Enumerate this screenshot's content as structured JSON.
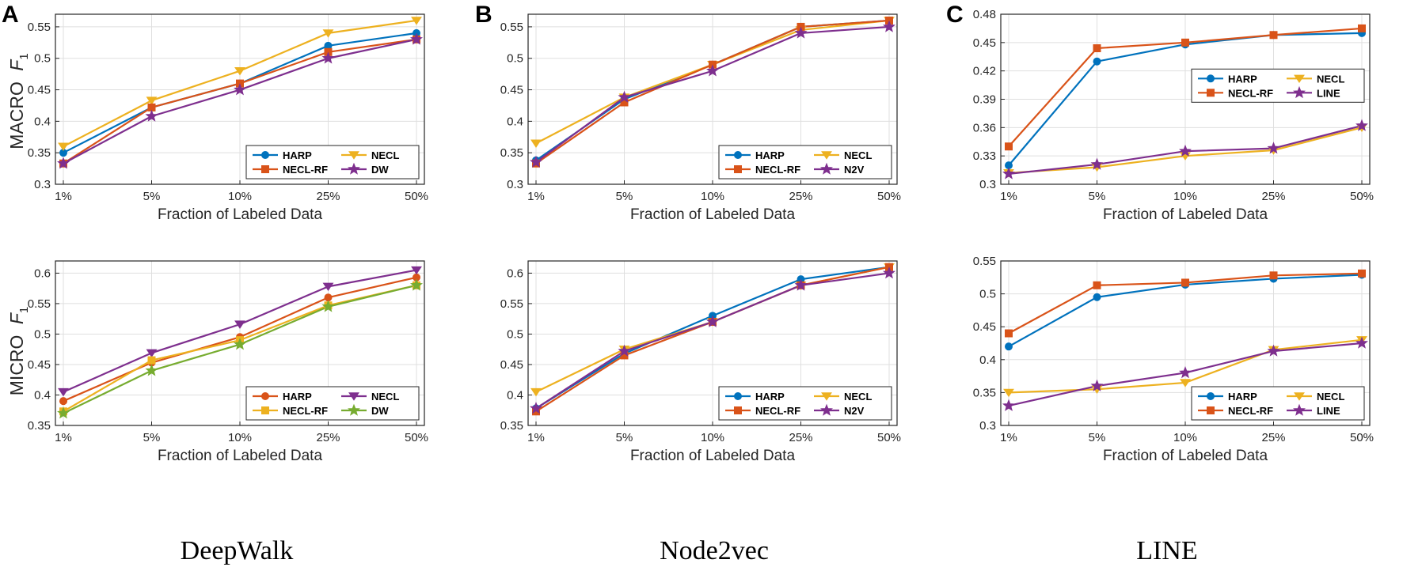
{
  "panel_letters": [
    "A",
    "B",
    "C"
  ],
  "captions": [
    "DeepWalk",
    "Node2vec",
    "LINE"
  ],
  "row_labels": {
    "macro": {
      "prefix": "MACRO",
      "f": "F",
      "sub": "1"
    },
    "micro": {
      "prefix": "MICRO",
      "f": "F",
      "sub": "1"
    }
  },
  "colors": {
    "blue": "#0072BD",
    "orange": "#D95319",
    "yellow": "#EDB120",
    "purple": "#7E2F8E",
    "green": "#77AC30"
  },
  "chart_data": [
    {
      "id": "deepwalk-macro",
      "type": "line",
      "categories": [
        "1%",
        "5%",
        "10%",
        "25%",
        "50%"
      ],
      "xlabel": "Fraction of Labeled Data",
      "ylabel": "MACRO F1",
      "ylim": [
        0.3,
        0.57
      ],
      "yticks": [
        "0.3",
        "0.35",
        "0.4",
        "0.45",
        "0.5",
        "0.55"
      ],
      "legend_location": "bottom-right",
      "series": [
        {
          "name": "HARP",
          "color": "#0072BD",
          "marker": "circle",
          "values": [
            0.35,
            0.422,
            0.46,
            0.52,
            0.54
          ]
        },
        {
          "name": "NECL",
          "color": "#EDB120",
          "marker": "triangle-down",
          "values": [
            0.36,
            0.433,
            0.48,
            0.54,
            0.56
          ]
        },
        {
          "name": "NECL-RF",
          "color": "#D95319",
          "marker": "square",
          "values": [
            0.333,
            0.422,
            0.46,
            0.51,
            0.53
          ]
        },
        {
          "name": "DW",
          "color": "#7E2F8E",
          "marker": "star",
          "values": [
            0.333,
            0.408,
            0.45,
            0.5,
            0.53
          ]
        }
      ]
    },
    {
      "id": "node2vec-macro",
      "type": "line",
      "categories": [
        "1%",
        "5%",
        "10%",
        "25%",
        "50%"
      ],
      "xlabel": "Fraction of Labeled Data",
      "ylabel": "MACRO F1",
      "ylim": [
        0.3,
        0.57
      ],
      "yticks": [
        "0.3",
        "0.35",
        "0.4",
        "0.45",
        "0.5",
        "0.55"
      ],
      "legend_location": "bottom-right",
      "series": [
        {
          "name": "HARP",
          "color": "#0072BD",
          "marker": "circle",
          "values": [
            0.338,
            0.435,
            0.49,
            0.55,
            0.56
          ]
        },
        {
          "name": "NECL",
          "color": "#EDB120",
          "marker": "triangle-down",
          "values": [
            0.365,
            0.438,
            0.49,
            0.545,
            0.56
          ]
        },
        {
          "name": "NECL-RF",
          "color": "#D95319",
          "marker": "square",
          "values": [
            0.333,
            0.43,
            0.49,
            0.55,
            0.56
          ]
        },
        {
          "name": "N2V",
          "color": "#7E2F8E",
          "marker": "star",
          "values": [
            0.335,
            0.438,
            0.48,
            0.54,
            0.55
          ]
        }
      ]
    },
    {
      "id": "line-macro",
      "type": "line",
      "categories": [
        "1%",
        "5%",
        "10%",
        "25%",
        "50%"
      ],
      "xlabel": "Fraction of Labeled Data",
      "ylabel": "MACRO F1",
      "ylim": [
        0.3,
        0.48
      ],
      "yticks": [
        "0.3",
        "0.33",
        "0.36",
        "0.39",
        "0.42",
        "0.45",
        "0.48"
      ],
      "legend_location": "center-right",
      "series": [
        {
          "name": "HARP",
          "color": "#0072BD",
          "marker": "circle",
          "values": [
            0.32,
            0.43,
            0.448,
            0.458,
            0.46
          ]
        },
        {
          "name": "NECL",
          "color": "#EDB120",
          "marker": "triangle-down",
          "values": [
            0.312,
            0.318,
            0.33,
            0.336,
            0.36
          ]
        },
        {
          "name": "NECL-RF",
          "color": "#D95319",
          "marker": "square",
          "values": [
            0.34,
            0.444,
            0.45,
            0.458,
            0.465
          ]
        },
        {
          "name": "LINE",
          "color": "#7E2F8E",
          "marker": "star",
          "values": [
            0.311,
            0.321,
            0.335,
            0.338,
            0.362
          ]
        }
      ]
    },
    {
      "id": "deepwalk-micro",
      "type": "line",
      "categories": [
        "1%",
        "5%",
        "10%",
        "25%",
        "50%"
      ],
      "xlabel": "Fraction of Labeled Data",
      "ylabel": "MICRO F1",
      "ylim": [
        0.35,
        0.62
      ],
      "yticks": [
        "0.35",
        "0.4",
        "0.45",
        "0.5",
        "0.55",
        "0.6"
      ],
      "legend_location": "bottom-right",
      "series": [
        {
          "name": "HARP",
          "color": "#D95319",
          "marker": "circle",
          "values": [
            0.39,
            0.453,
            0.495,
            0.56,
            0.593
          ]
        },
        {
          "name": "NECL",
          "color": "#7E2F8E",
          "marker": "triangle-down",
          "values": [
            0.405,
            0.469,
            0.516,
            0.578,
            0.605
          ]
        },
        {
          "name": "NECL-RF",
          "color": "#EDB120",
          "marker": "square",
          "values": [
            0.373,
            0.457,
            0.49,
            0.547,
            0.58
          ]
        },
        {
          "name": "DW",
          "color": "#77AC30",
          "marker": "star",
          "values": [
            0.37,
            0.44,
            0.483,
            0.545,
            0.58
          ]
        }
      ]
    },
    {
      "id": "node2vec-micro",
      "type": "line",
      "categories": [
        "1%",
        "5%",
        "10%",
        "25%",
        "50%"
      ],
      "xlabel": "Fraction of Labeled Data",
      "ylabel": "MICRO F1",
      "ylim": [
        0.35,
        0.62
      ],
      "yticks": [
        "0.35",
        "0.4",
        "0.45",
        "0.5",
        "0.55",
        "0.6"
      ],
      "legend_location": "bottom-right",
      "series": [
        {
          "name": "HARP",
          "color": "#0072BD",
          "marker": "circle",
          "values": [
            0.378,
            0.468,
            0.53,
            0.59,
            0.61
          ]
        },
        {
          "name": "NECL",
          "color": "#EDB120",
          "marker": "triangle-down",
          "values": [
            0.405,
            0.475,
            0.52,
            0.58,
            0.61
          ]
        },
        {
          "name": "NECL-RF",
          "color": "#D95319",
          "marker": "square",
          "values": [
            0.373,
            0.465,
            0.52,
            0.58,
            0.61
          ]
        },
        {
          "name": "N2V",
          "color": "#7E2F8E",
          "marker": "star",
          "values": [
            0.378,
            0.472,
            0.52,
            0.58,
            0.6
          ]
        }
      ]
    },
    {
      "id": "line-micro",
      "type": "line",
      "categories": [
        "1%",
        "5%",
        "10%",
        "25%",
        "50%"
      ],
      "xlabel": "Fraction of Labeled Data",
      "ylabel": "MICRO F1",
      "ylim": [
        0.3,
        0.55
      ],
      "yticks": [
        "0.3",
        "0.35",
        "0.4",
        "0.45",
        "0.5",
        "0.55"
      ],
      "legend_location": "bottom-right",
      "series": [
        {
          "name": "HARP",
          "color": "#0072BD",
          "marker": "circle",
          "values": [
            0.42,
            0.495,
            0.514,
            0.523,
            0.529
          ]
        },
        {
          "name": "NECL",
          "color": "#EDB120",
          "marker": "triangle-down",
          "values": [
            0.35,
            0.355,
            0.365,
            0.415,
            0.43
          ]
        },
        {
          "name": "NECL-RF",
          "color": "#D95319",
          "marker": "square",
          "values": [
            0.44,
            0.513,
            0.517,
            0.528,
            0.531
          ]
        },
        {
          "name": "LINE",
          "color": "#7E2F8E",
          "marker": "star",
          "values": [
            0.33,
            0.36,
            0.38,
            0.413,
            0.425
          ]
        }
      ]
    }
  ]
}
